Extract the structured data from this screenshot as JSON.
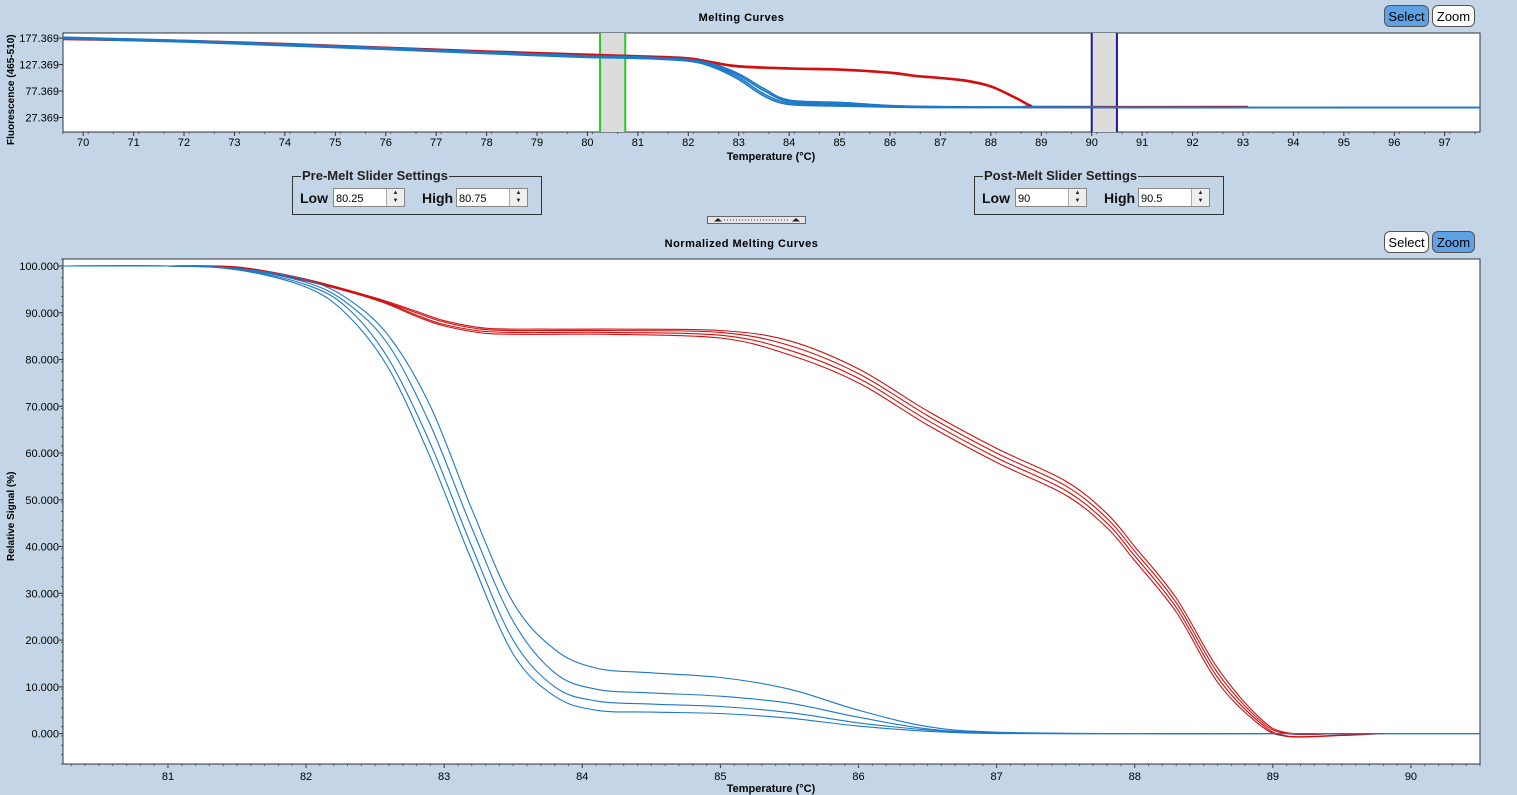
{
  "top_chart": {
    "title": "Melting Curves",
    "select_label": "Select",
    "zoom_label": "Zoom",
    "active_mode": "Select"
  },
  "bottom_chart": {
    "title": "Normalized Melting Curves",
    "select_label": "Select",
    "zoom_label": "Zoom",
    "active_mode": "Zoom"
  },
  "pre_melt": {
    "legend": "Pre-Melt Slider Settings",
    "low_label": "Low",
    "low_value": "80.25",
    "high_label": "High",
    "high_value": "80.75"
  },
  "post_melt": {
    "legend": "Post-Melt Slider Settings",
    "low_label": "Low",
    "low_value": "90",
    "high_label": "High",
    "high_value": "90.5"
  },
  "chart_data": [
    {
      "type": "line",
      "title": "Melting Curves",
      "xlabel": "Temperature (°C)",
      "ylabel": "Fluorescence (465-510)",
      "xlim": [
        69.6,
        97.7
      ],
      "ylim": [
        0,
        187
      ],
      "x_ticks": [
        "70",
        "71",
        "72",
        "73",
        "74",
        "75",
        "76",
        "77",
        "78",
        "79",
        "80",
        "81",
        "82",
        "83",
        "84",
        "85",
        "86",
        "87",
        "88",
        "89",
        "90",
        "91",
        "92",
        "93",
        "94",
        "95",
        "96",
        "97"
      ],
      "y_ticks": [
        "27.369",
        "77.369",
        "127.369",
        "177.369"
      ],
      "pre_melt_range": [
        80.25,
        80.75
      ],
      "post_melt_range": [
        90,
        90.5
      ],
      "series": [
        {
          "color": "#d01010",
          "x": [
            69.6,
            72,
            74,
            76,
            78,
            80,
            81,
            82,
            82.5,
            83,
            84,
            85,
            86,
            86.5,
            87,
            87.5,
            88,
            88.5,
            88.8,
            89,
            93.1
          ],
          "y": [
            176,
            172,
            166,
            159,
            152,
            146,
            143,
            139,
            131,
            124,
            120,
            118,
            112,
            106,
            102,
            97,
            86,
            64,
            49,
            47,
            47
          ]
        },
        {
          "color": "#d01010",
          "x": [
            69.6,
            72,
            74,
            76,
            78,
            80,
            81,
            82,
            82.5,
            83,
            84,
            85,
            86,
            86.5,
            87,
            87.5,
            88,
            88.5,
            88.8,
            89,
            93.1
          ],
          "y": [
            177,
            173,
            167,
            160,
            153,
            147,
            144,
            140,
            132,
            125,
            121,
            119,
            113,
            107,
            103,
            98,
            87,
            65,
            50,
            48,
            48
          ]
        },
        {
          "color": "#d01010",
          "x": [
            69.6,
            72,
            74,
            76,
            78,
            80,
            81,
            82,
            82.5,
            83,
            84,
            85,
            86,
            86.5,
            87,
            87.5,
            88,
            88.5,
            88.8,
            89,
            93.1
          ],
          "y": [
            175,
            171,
            165,
            158,
            151,
            145,
            142,
            138,
            130,
            123,
            119,
            117,
            111,
            105,
            101,
            96,
            85,
            63,
            48,
            46,
            46
          ]
        },
        {
          "color": "#1d78c8",
          "x": [
            69.6,
            72,
            74,
            76,
            78,
            80,
            81,
            82,
            82.5,
            83,
            83.5,
            84,
            85,
            86,
            87,
            88,
            89,
            93,
            95,
            97.7
          ],
          "y": [
            178,
            172,
            165,
            158,
            150,
            143,
            141,
            136,
            126,
            107,
            78,
            58,
            53,
            49,
            47,
            47,
            47,
            46,
            46,
            46
          ]
        },
        {
          "color": "#1d78c8",
          "x": [
            69.6,
            72,
            74,
            76,
            78,
            80,
            81,
            82,
            82.5,
            83,
            83.5,
            84,
            85,
            86,
            87,
            88,
            89,
            93,
            95,
            97.7
          ],
          "y": [
            177,
            171,
            164,
            157,
            149,
            142,
            140,
            135,
            124,
            103,
            72,
            55,
            51,
            48,
            47,
            47,
            47,
            46,
            46,
            46
          ]
        },
        {
          "color": "#1d78c8",
          "x": [
            69.6,
            72,
            74,
            76,
            78,
            80,
            81,
            82,
            82.5,
            83,
            83.5,
            84,
            85,
            86,
            87,
            88,
            89,
            93,
            95,
            97.7
          ],
          "y": [
            176,
            170,
            163,
            156,
            148,
            141,
            139,
            134,
            122,
            99,
            68,
            52,
            49,
            47,
            46,
            46,
            46,
            46,
            46,
            46
          ]
        },
        {
          "color": "#1d78c8",
          "x": [
            69.6,
            72,
            74,
            76,
            78,
            80,
            81,
            82,
            82.5,
            83,
            83.5,
            84,
            85,
            86,
            87,
            88,
            89,
            93,
            95,
            97.7
          ],
          "y": [
            179,
            173,
            166,
            159,
            151,
            144,
            142,
            137,
            128,
            110,
            82,
            60,
            56,
            50,
            48,
            47,
            47,
            46,
            46,
            46
          ]
        }
      ]
    },
    {
      "type": "line",
      "title": "Normalized Melting Curves",
      "xlabel": "Temperature (°C)",
      "ylabel": "Relative Signal (%)",
      "xlim": [
        80.24,
        90.5
      ],
      "ylim": [
        -6.5,
        101.5
      ],
      "x_ticks": [
        "81",
        "82",
        "83",
        "84",
        "85",
        "86",
        "87",
        "88",
        "89",
        "90"
      ],
      "y_ticks": [
        "0.000",
        "10.000",
        "20.000",
        "30.000",
        "40.000",
        "50.000",
        "60.000",
        "70.000",
        "80.000",
        "90.000",
        "100.000"
      ],
      "series": [
        {
          "color": "#d01010",
          "x": [
            81.0,
            81.5,
            82.0,
            82.5,
            82.8,
            83.0,
            83.3,
            83.7,
            84.2,
            85.0,
            85.5,
            86.0,
            86.5,
            87.0,
            87.5,
            87.8,
            88.0,
            88.3,
            88.6,
            88.9,
            89.1,
            89.5,
            89.8
          ],
          "y": [
            100,
            99.7,
            97,
            93,
            90,
            88,
            86.4,
            86.2,
            86.2,
            85.8,
            83,
            77,
            68,
            60,
            53,
            46,
            39,
            28,
            13,
            3,
            0,
            0,
            0
          ]
        },
        {
          "color": "#d01010",
          "x": [
            81.0,
            81.5,
            82.0,
            82.5,
            82.8,
            83.0,
            83.3,
            83.7,
            84.2,
            85.0,
            85.5,
            86.0,
            86.5,
            87.0,
            87.5,
            87.8,
            88.0,
            88.3,
            88.6,
            88.9,
            89.1,
            89.5,
            89.8
          ],
          "y": [
            100,
            99.7,
            97,
            93,
            89.5,
            87.5,
            86,
            85.8,
            85.8,
            85.2,
            82,
            76,
            67,
            59,
            52,
            45,
            38,
            27,
            12,
            2.5,
            -0.5,
            -0.3,
            0
          ]
        },
        {
          "color": "#d01010",
          "x": [
            81.0,
            81.5,
            82.0,
            82.5,
            82.8,
            83.0,
            83.3,
            83.7,
            84.2,
            85.0,
            85.5,
            86.0,
            86.5,
            87.0,
            87.5,
            87.8,
            88.0,
            88.3,
            88.6,
            88.9,
            89.1,
            89.5,
            89.8
          ],
          "y": [
            100,
            99.7,
            96.8,
            92.8,
            89.2,
            87.2,
            85.6,
            85.4,
            85.4,
            84.6,
            81,
            75,
            66,
            58,
            51,
            44,
            37,
            26,
            11,
            2,
            -0.6,
            -0.4,
            0
          ]
        },
        {
          "color": "#d01010",
          "x": [
            81.0,
            81.5,
            82.0,
            82.5,
            82.8,
            83.0,
            83.3,
            83.7,
            84.2,
            85.0,
            85.5,
            86.0,
            86.5,
            87.0,
            87.5,
            87.8,
            88.0,
            88.3,
            88.6,
            88.9,
            89.1,
            89.5,
            89.8
          ],
          "y": [
            100,
            99.8,
            97.2,
            93.2,
            90.3,
            88.3,
            86.7,
            86.5,
            86.5,
            86.2,
            84,
            78,
            69,
            61,
            54,
            47,
            40,
            29,
            14,
            3.5,
            0.2,
            0,
            0
          ]
        },
        {
          "color": "#1d78c8",
          "x": [
            80.24,
            81,
            81.5,
            82,
            82.3,
            82.6,
            82.9,
            83.2,
            83.5,
            83.8,
            84.1,
            84.5,
            85,
            85.5,
            86,
            86.5,
            87,
            88,
            89,
            90.5
          ],
          "y": [
            100,
            100,
            99.5,
            97,
            93,
            85,
            70,
            48,
            28,
            18,
            14,
            13,
            12,
            9.5,
            5,
            1.5,
            0.3,
            0,
            0,
            0
          ]
        },
        {
          "color": "#1d78c8",
          "x": [
            80.24,
            81,
            81.5,
            82,
            82.3,
            82.6,
            82.9,
            83.2,
            83.5,
            83.8,
            84.1,
            84.5,
            85,
            85.5,
            86,
            86.5,
            87,
            88,
            89,
            90.5
          ],
          "y": [
            100,
            100,
            99.4,
            96.5,
            92,
            83,
            66,
            44,
            24,
            13,
            9.5,
            8.7,
            8,
            6.5,
            3.5,
            1,
            0.2,
            0,
            0,
            0
          ]
        },
        {
          "color": "#1d78c8",
          "x": [
            80.24,
            81,
            81.5,
            82,
            82.3,
            82.6,
            82.9,
            83.2,
            83.5,
            83.8,
            84.1,
            84.5,
            85,
            85.5,
            86,
            86.5,
            87,
            88,
            89,
            90.5
          ],
          "y": [
            100,
            100,
            99.3,
            96,
            91,
            80,
            62,
            40,
            20,
            10,
            7,
            6.3,
            5.8,
            4.5,
            2.3,
            0.8,
            0.1,
            0,
            0,
            0
          ]
        },
        {
          "color": "#1d78c8",
          "x": [
            80.24,
            81,
            81.5,
            82,
            82.3,
            82.6,
            82.9,
            83.2,
            83.5,
            83.8,
            84.1,
            84.5,
            85,
            85.5,
            86,
            86.5,
            87,
            88,
            89,
            90.5
          ],
          "y": [
            100,
            100,
            99.2,
            95.5,
            89.5,
            78,
            59,
            37,
            17,
            8,
            5,
            4.6,
            4.3,
            3.3,
            1.6,
            0.5,
            0,
            0,
            0,
            0
          ]
        }
      ]
    }
  ]
}
